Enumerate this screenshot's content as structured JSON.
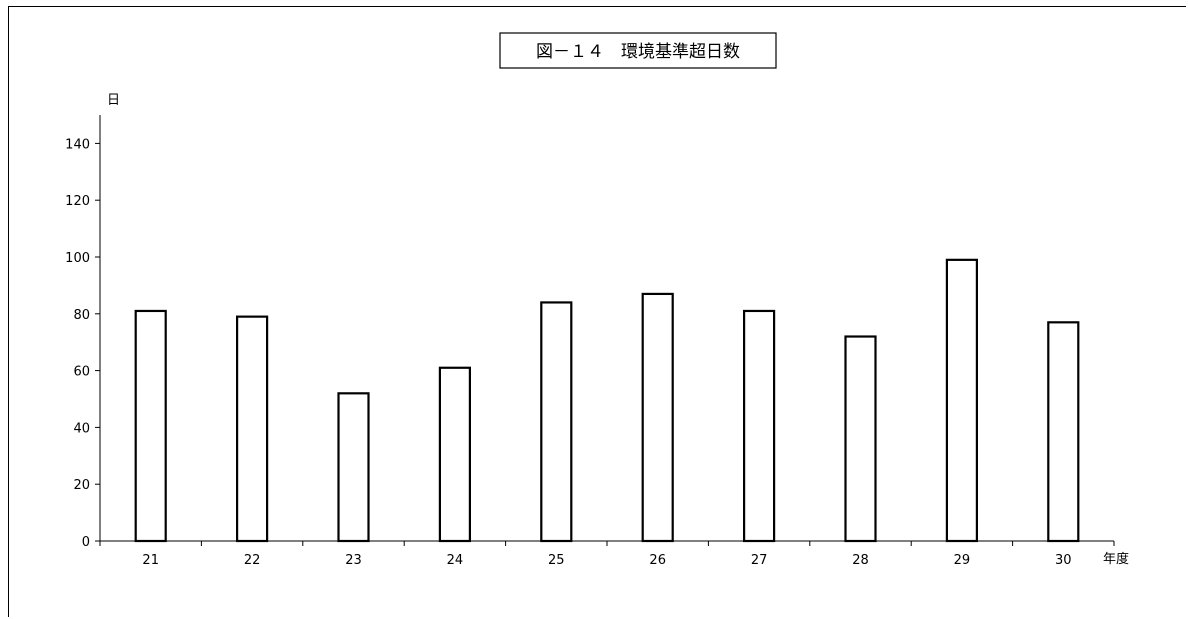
{
  "chart_data": {
    "type": "bar",
    "title": "図－１４　環境基準超日数",
    "ylabel": "日",
    "xlabel": "年度",
    "categories": [
      "21",
      "22",
      "23",
      "24",
      "25",
      "26",
      "27",
      "28",
      "29",
      "30"
    ],
    "values": [
      81,
      79,
      52,
      61,
      84,
      87,
      81,
      72,
      99,
      77
    ],
    "ylim": [
      0,
      150
    ],
    "yticks": [
      0,
      20,
      40,
      60,
      80,
      100,
      120,
      140
    ],
    "grid": false,
    "legend": "none",
    "bar_fill": "#ffffff",
    "bar_stroke": "#000000"
  }
}
